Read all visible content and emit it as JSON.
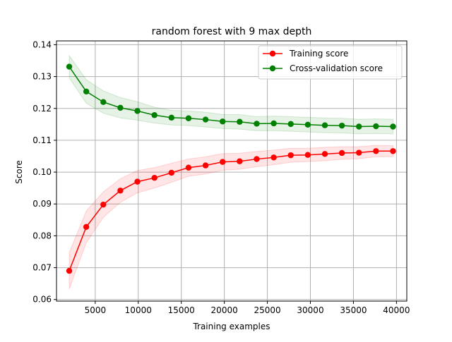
{
  "chart_data": {
    "type": "line",
    "title": "random forest with 9 max depth",
    "xlabel": "Training examples",
    "ylabel": "Score",
    "xlim": [
      500,
      41200
    ],
    "ylim": [
      0.0595,
      0.1412
    ],
    "grid": true,
    "legend_position": "top-right",
    "x": [
      1980,
      3960,
      5940,
      7920,
      9900,
      11880,
      13860,
      15840,
      17820,
      19800,
      21780,
      23760,
      25740,
      27720,
      29700,
      31680,
      33660,
      35640,
      37620,
      39600
    ],
    "x_ticks": [
      5000,
      10000,
      15000,
      20000,
      25000,
      30000,
      35000,
      40000
    ],
    "x_tick_labels": [
      "5000",
      "10000",
      "15000",
      "20000",
      "25000",
      "30000",
      "35000",
      "40000"
    ],
    "y_ticks": [
      0.06,
      0.07,
      0.08,
      0.09,
      0.1,
      0.11,
      0.12,
      0.13,
      0.14
    ],
    "y_tick_labels": [
      "0.06",
      "0.07",
      "0.08",
      "0.09",
      "0.10",
      "0.11",
      "0.12",
      "0.13",
      "0.14"
    ],
    "series": [
      {
        "name": "Training score",
        "color": "#ff0000",
        "band_color": "#ff0000",
        "values": [
          0.069,
          0.0828,
          0.0898,
          0.0942,
          0.097,
          0.0982,
          0.0998,
          0.1014,
          0.1021,
          0.1032,
          0.1034,
          0.1041,
          0.1046,
          0.1053,
          0.1054,
          0.1057,
          0.106,
          0.1061,
          0.1066,
          0.1066
        ],
        "band_lower": [
          0.0633,
          0.0778,
          0.0858,
          0.0905,
          0.0935,
          0.095,
          0.0968,
          0.0987,
          0.0994,
          0.1006,
          0.1009,
          0.1017,
          0.1023,
          0.1031,
          0.1033,
          0.1036,
          0.104,
          0.1042,
          0.1048,
          0.1049
        ],
        "band_upper": [
          0.0747,
          0.0878,
          0.0938,
          0.0979,
          0.1005,
          0.1014,
          0.1028,
          0.1041,
          0.1048,
          0.1058,
          0.1059,
          0.1065,
          0.1069,
          0.1075,
          0.1075,
          0.1078,
          0.108,
          0.108,
          0.1084,
          0.1083
        ]
      },
      {
        "name": "Cross-validation score",
        "color": "#008000",
        "band_color": "#008000",
        "values": [
          0.1331,
          0.1253,
          0.122,
          0.1202,
          0.1192,
          0.1179,
          0.1171,
          0.1169,
          0.1165,
          0.1159,
          0.1158,
          0.1152,
          0.1153,
          0.1151,
          0.1149,
          0.1147,
          0.1146,
          0.1143,
          0.1144,
          0.1143
        ],
        "band_lower": [
          0.1296,
          0.1216,
          0.1185,
          0.117,
          0.1163,
          0.1154,
          0.1148,
          0.1146,
          0.1142,
          0.1137,
          0.1135,
          0.113,
          0.113,
          0.1128,
          0.1126,
          0.1124,
          0.1123,
          0.112,
          0.1121,
          0.112
        ],
        "band_upper": [
          0.1366,
          0.129,
          0.1255,
          0.1234,
          0.1221,
          0.1204,
          0.1194,
          0.1192,
          0.1188,
          0.1181,
          0.1181,
          0.1174,
          0.1176,
          0.1174,
          0.1172,
          0.117,
          0.1169,
          0.1166,
          0.1167,
          0.1166
        ]
      }
    ]
  }
}
